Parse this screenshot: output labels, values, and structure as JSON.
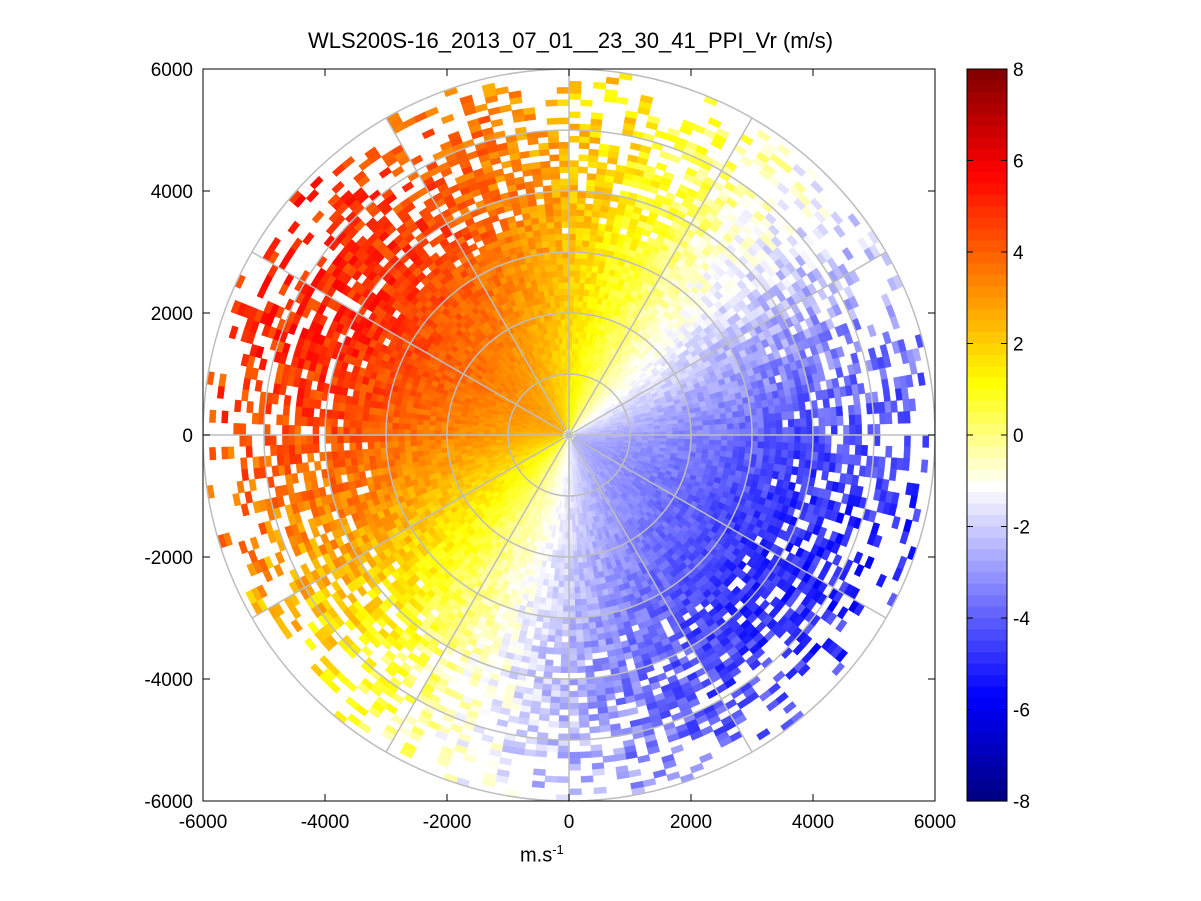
{
  "chart_data": {
    "type": "polar_ppi_heatmap",
    "title": "WLS200S-16_2013_07_01__23_30_41_PPI_Vr (m/s)",
    "xlabel_base": "m.s",
    "xlabel_exponent": "-1",
    "ylabel": "",
    "xlim": [
      -6000,
      6000
    ],
    "ylim": [
      -6000,
      6000
    ],
    "x_ticks": [
      "-6000",
      "-4000",
      "-2000",
      "0",
      "2000",
      "4000",
      "6000"
    ],
    "y_ticks": [
      "6000",
      "4000",
      "2000",
      "0",
      "-2000",
      "-4000",
      "-6000"
    ],
    "polar_grid": {
      "range_rings_m": [
        1000,
        2000,
        3000,
        4000,
        5000,
        6000
      ],
      "spoke_step_deg": 30
    },
    "max_range_m": 6000,
    "range_gate_m": 100,
    "azimuth_step_deg": 2,
    "field": {
      "description": "radial velocity Vr (m/s), dipole pattern",
      "wind_from_azimuth_deg": 120,
      "amplitude_ms": 4.5,
      "min_range_m": 100
    },
    "colorbar": {
      "label": "m/s",
      "range": [
        -8,
        8
      ],
      "ticks": [
        "8",
        "6",
        "4",
        "2",
        "0",
        "-2",
        "-4",
        "-6",
        "-8"
      ],
      "colors": [
        "#00007f",
        "#0000ff",
        "#7f7fff",
        "#ffffff",
        "#ffff00",
        "#ff7f00",
        "#ff0000",
        "#7f0000"
      ]
    }
  }
}
